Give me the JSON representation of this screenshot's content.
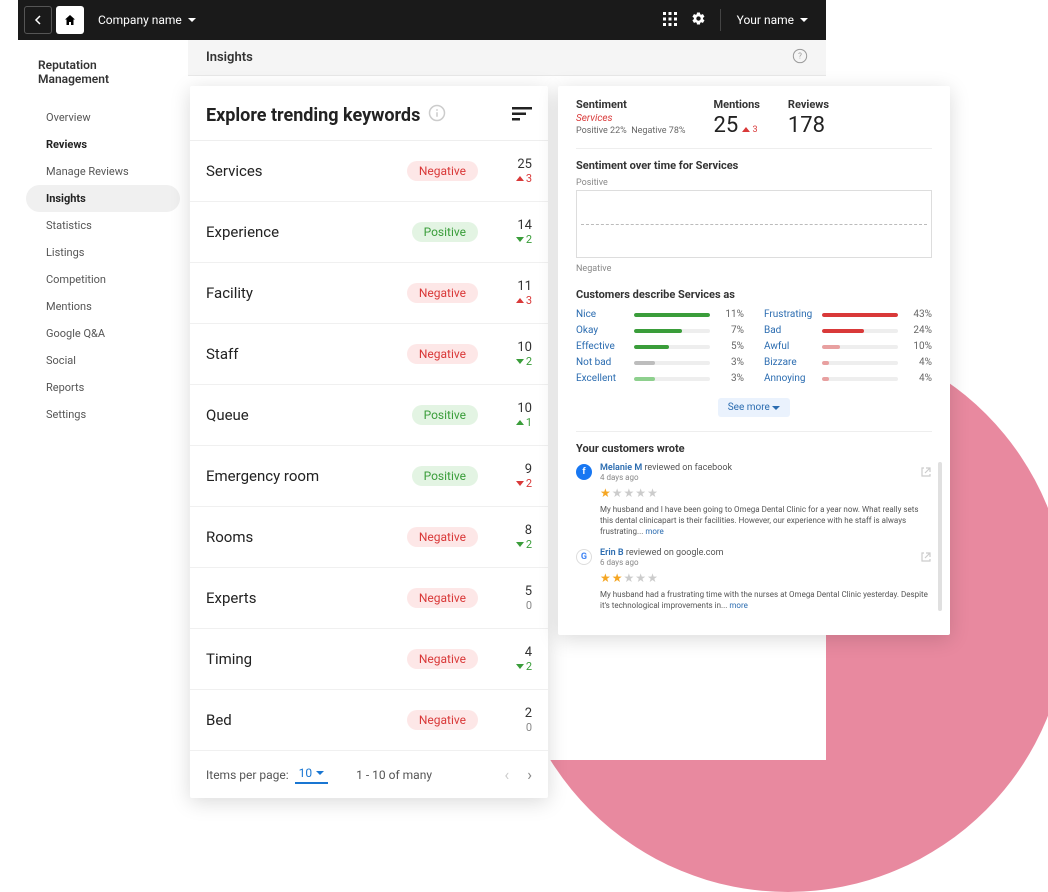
{
  "topbar": {
    "company_label": "Company name",
    "username_label": "Your name"
  },
  "sidebar": {
    "app_title": "Reputation Management",
    "items": [
      {
        "label": "Overview",
        "bold": false,
        "active": false
      },
      {
        "label": "Reviews",
        "bold": true,
        "active": false
      },
      {
        "label": "Manage Reviews",
        "bold": false,
        "active": false
      },
      {
        "label": "Insights",
        "bold": false,
        "active": true
      },
      {
        "label": "Statistics",
        "bold": false,
        "active": false
      },
      {
        "label": "Listings",
        "bold": false,
        "active": false
      },
      {
        "label": "Competition",
        "bold": false,
        "active": false
      },
      {
        "label": "Mentions",
        "bold": false,
        "active": false
      },
      {
        "label": "Google Q&A",
        "bold": false,
        "active": false
      },
      {
        "label": "Social",
        "bold": false,
        "active": false
      },
      {
        "label": "Reports",
        "bold": false,
        "active": false
      },
      {
        "label": "Settings",
        "bold": false,
        "active": false
      }
    ]
  },
  "page_header": "Insights",
  "keywords": {
    "title": "Explore trending keywords",
    "rows": [
      {
        "name": "Services",
        "sentiment": "Negative",
        "count": 25,
        "delta": 3,
        "dir": "up"
      },
      {
        "name": "Experience",
        "sentiment": "Positive",
        "count": 14,
        "delta": 2,
        "dir": "down-green"
      },
      {
        "name": "Facility",
        "sentiment": "Negative",
        "count": 11,
        "delta": 3,
        "dir": "up"
      },
      {
        "name": "Staff",
        "sentiment": "Negative",
        "count": 10,
        "delta": 2,
        "dir": "down-green"
      },
      {
        "name": "Queue",
        "sentiment": "Positive",
        "count": 10,
        "delta": 1,
        "dir": "up-green"
      },
      {
        "name": "Emergency room",
        "sentiment": "Positive",
        "count": 9,
        "delta": 2,
        "dir": "down-red"
      },
      {
        "name": "Rooms",
        "sentiment": "Negative",
        "count": 8,
        "delta": 2,
        "dir": "down-green"
      },
      {
        "name": "Experts",
        "sentiment": "Negative",
        "count": 5,
        "delta": 0,
        "dir": "zero"
      },
      {
        "name": "Timing",
        "sentiment": "Negative",
        "count": 4,
        "delta": 2,
        "dir": "down-green"
      },
      {
        "name": "Bed",
        "sentiment": "Negative",
        "count": 2,
        "delta": 0,
        "dir": "zero"
      }
    ],
    "footer": {
      "ipp_label": "Items per page:",
      "ipp_value": "10",
      "range": "1 - 10 of many"
    }
  },
  "detail": {
    "sentiment_label": "Sentiment",
    "sentiment_word": "Services",
    "positive_pct": "22%",
    "negative_pct": "78%",
    "mentions_label": "Mentions",
    "mentions_value": "25",
    "mentions_delta": "3",
    "reviews_label": "Reviews",
    "reviews_value": "178",
    "chart_title": "Sentiment over time for Services",
    "chart_pos_label": "Positive",
    "chart_neg_label": "Negative",
    "describe_title": "Customers describe Services as",
    "positive_words": [
      {
        "word": "Nice",
        "pct": 11,
        "color": "#3a9d3a"
      },
      {
        "word": "Okay",
        "pct": 7,
        "color": "#3a9d3a"
      },
      {
        "word": "Effective",
        "pct": 5,
        "color": "#3a9d3a"
      },
      {
        "word": "Not bad",
        "pct": 3,
        "color": "#bdbdbd"
      },
      {
        "word": "Excellent",
        "pct": 3,
        "color": "#8ed08e"
      }
    ],
    "negative_words": [
      {
        "word": "Frustrating",
        "pct": 43,
        "color": "#d93939"
      },
      {
        "word": "Bad",
        "pct": 24,
        "color": "#d93939"
      },
      {
        "word": "Awful",
        "pct": 10,
        "color": "#e8a0a0"
      },
      {
        "word": "Bizzare",
        "pct": 4,
        "color": "#e8a0a0"
      },
      {
        "word": "Annoying",
        "pct": 4,
        "color": "#e8a0a0"
      }
    ],
    "see_more": "See more",
    "reviews_title": "Your customers wrote",
    "reviews": [
      {
        "avatar_bg": "#1877f2",
        "avatar_letter": "f",
        "name": "Melanie M",
        "source": "reviewed on facebook",
        "time": "4 days ago",
        "stars": 1,
        "text": "My husband and I have been going to Omega Dental Clinic for a year now. What really sets this dental clinicapart is their facilities. However, our experience with he staff is always frustrating...",
        "more": "more"
      },
      {
        "avatar_bg": "#fff",
        "avatar_letter": "G",
        "name": "Erin B",
        "source": "reviewed on google.com",
        "time": "6 days ago",
        "stars": 2,
        "text": "My husband had a frustrating time with the nurses at Omega Dental Clinic yesterday. Despite it's technological improvements in...",
        "more": "more"
      }
    ]
  },
  "colors": {
    "pink": "#e8899f",
    "negative_badge_bg": "#fde7e7",
    "negative_badge_text": "#d93939",
    "positive_badge_bg": "#e3f4e3",
    "positive_badge_text": "#3a9d3a",
    "link": "#2b6cb0"
  }
}
